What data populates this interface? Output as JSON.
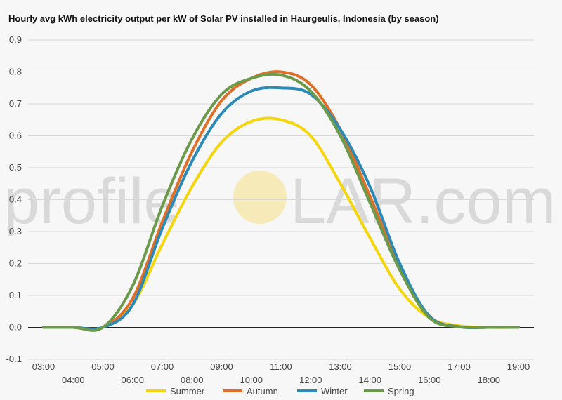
{
  "chart_data": {
    "type": "line",
    "title": "Hourly avg kWh electricity output per kW of Solar PV installed in Haurgeulis, Indonesia (by season)",
    "xlabel": "",
    "ylabel": "",
    "x": [
      "03:00",
      "04:00",
      "05:00",
      "06:00",
      "07:00",
      "08:00",
      "09:00",
      "10:00",
      "11:00",
      "12:00",
      "13:00",
      "14:00",
      "15:00",
      "16:00",
      "17:00",
      "18:00",
      "19:00"
    ],
    "ylim": [
      -0.1,
      0.9
    ],
    "yticks": [
      "-0.1",
      "0.0",
      "0.1",
      "0.2",
      "0.3",
      "0.4",
      "0.5",
      "0.6",
      "0.7",
      "0.8",
      "0.9"
    ],
    "grid": true,
    "legend_position": "bottom",
    "series": [
      {
        "name": "Summer",
        "color": "#f5d60c",
        "values": [
          0,
          0,
          0,
          0.07,
          0.26,
          0.44,
          0.58,
          0.645,
          0.65,
          0.6,
          0.45,
          0.28,
          0.12,
          0.03,
          0.005,
          0,
          0
        ]
      },
      {
        "name": "Autumn",
        "color": "#e07028",
        "values": [
          0,
          0,
          0,
          0.09,
          0.33,
          0.55,
          0.71,
          0.78,
          0.8,
          0.76,
          0.62,
          0.41,
          0.19,
          0.035,
          0.002,
          0,
          0
        ]
      },
      {
        "name": "Winter",
        "color": "#2b8ab8",
        "values": [
          0,
          0,
          0,
          0.07,
          0.31,
          0.52,
          0.67,
          0.74,
          0.75,
          0.73,
          0.62,
          0.44,
          0.2,
          0.035,
          0.002,
          0,
          0
        ]
      },
      {
        "name": "Spring",
        "color": "#6a9a4a",
        "values": [
          0,
          0,
          0,
          0.13,
          0.38,
          0.59,
          0.73,
          0.78,
          0.79,
          0.74,
          0.6,
          0.39,
          0.18,
          0.03,
          0.002,
          0,
          0
        ]
      }
    ]
  },
  "watermark": {
    "text_before": "profile",
    "text_after": "LAR.com"
  }
}
